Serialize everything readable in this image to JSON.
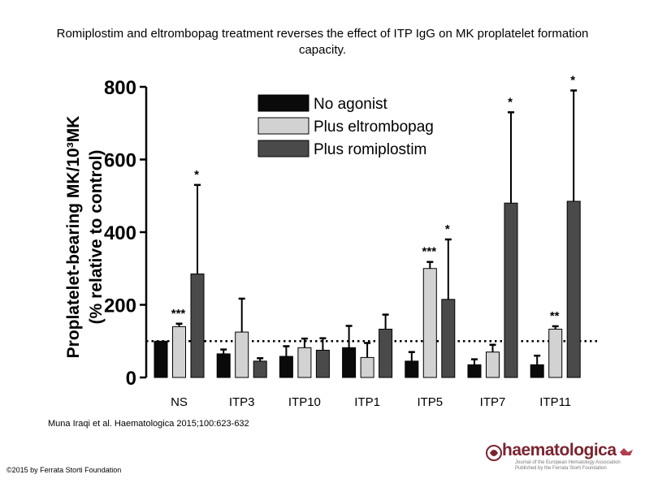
{
  "title": "Romiplostim and eltrombopag treatment reverses the effect of ITP IgG on MK proplatelet formation capacity.",
  "citation": "Muna Iraqi et al. Haematologica 2015;100:623-632",
  "copyright": "©2015 by Ferrata Storti Foundation",
  "logo": {
    "name": "haematologica",
    "tagline1": "Journal of the European Hematology Association",
    "tagline2": "Published by the Ferrata Storti Foundation"
  },
  "colors": {
    "no_agonist": "#0a0a0a",
    "plus_eltrombopag": "#d2d2d2",
    "plus_romiplostim": "#4a4a4a",
    "logo": "#7a2430"
  },
  "chart_data": {
    "type": "bar",
    "title": "",
    "ylabel": "Proplatelet-bearing MK/10³MK",
    "ylabel2": "(% relative to control)",
    "xlabel": "",
    "ylim": [
      0,
      800
    ],
    "yticks": [
      0,
      200,
      400,
      600,
      800
    ],
    "reference_line": 100,
    "legend_placement": "top",
    "categories": [
      "NS",
      "ITP3",
      "ITP10",
      "ITP1",
      "ITP5",
      "ITP7",
      "ITP11"
    ],
    "series": [
      {
        "name": "No agonist",
        "values": [
          100,
          65,
          58,
          82,
          45,
          35,
          35
        ],
        "errors": [
          0,
          12,
          28,
          60,
          25,
          15,
          25
        ],
        "annotations": [
          "",
          "",
          "",
          "",
          "",
          "",
          ""
        ]
      },
      {
        "name": "Plus eltrombopag",
        "values": [
          140,
          125,
          82,
          55,
          300,
          70,
          133
        ],
        "errors": [
          8,
          92,
          25,
          40,
          18,
          20,
          8
        ],
        "annotations": [
          "***",
          "",
          "",
          "",
          "***",
          "",
          "**"
        ]
      },
      {
        "name": "Plus romiplostim",
        "values": [
          285,
          45,
          75,
          133,
          215,
          480,
          485
        ],
        "errors": [
          245,
          8,
          33,
          40,
          165,
          250,
          305
        ],
        "annotations": [
          "*",
          "",
          "",
          "",
          "*",
          "*",
          "*"
        ]
      }
    ]
  }
}
